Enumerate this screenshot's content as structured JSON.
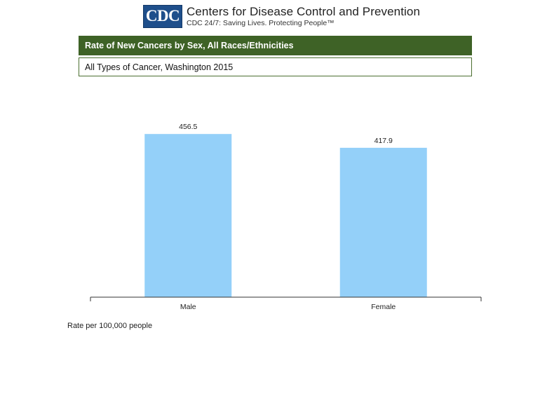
{
  "header": {
    "logo_text": "CDC",
    "org_name": "Centers for Disease Control and Prevention",
    "tagline": "CDC 24/7: Saving Lives. Protecting People™"
  },
  "title_bar": "Rate of New Cancers by Sex, All Races/Ethnicities",
  "subtitle": "All Types of Cancer, Washington 2015",
  "footnote": "Rate per 100,000 people",
  "colors": {
    "title_bar": "#3e6226",
    "bar": "#94d0f9",
    "logo": "#1f4f8b"
  },
  "chart_data": {
    "type": "bar",
    "categories": [
      "Male",
      "Female"
    ],
    "values": [
      456.5,
      417.9
    ],
    "data_labels": [
      "456.5",
      "417.9"
    ],
    "title": "Rate of New Cancers by Sex, All Races/Ethnicities",
    "subtitle": "All Types of Cancer, Washington 2015",
    "xlabel": "",
    "ylabel": "",
    "ylim": [
      0,
      500
    ],
    "grid": false,
    "legend": "none"
  }
}
